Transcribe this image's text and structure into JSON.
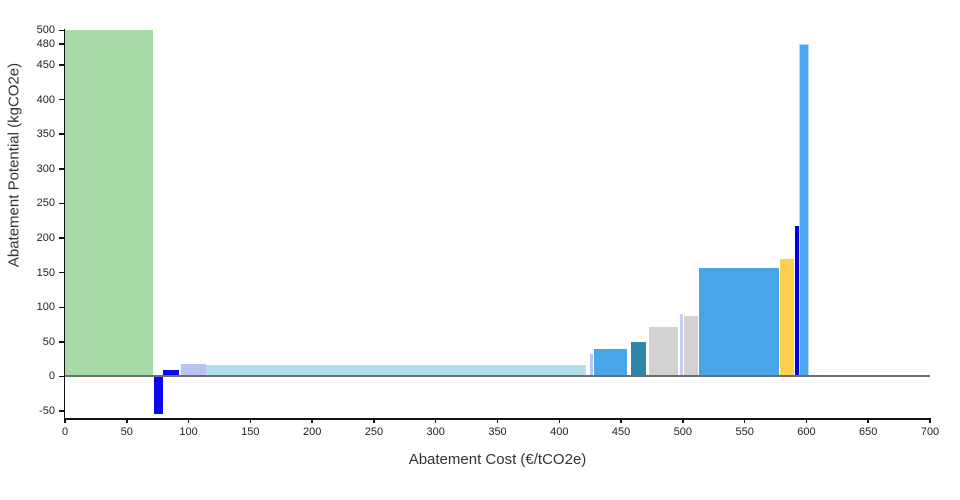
{
  "chart_data": {
    "type": "bar",
    "title": "",
    "xlabel": "Abatement Cost (€/tCO2e)",
    "ylabel": "Abatement Potential (kgCO2e)",
    "xlim": [
      0,
      700
    ],
    "ylim": [
      -60,
      502
    ],
    "grid": false,
    "legend": "none",
    "x_ticks": [
      0,
      50,
      100,
      150,
      200,
      250,
      300,
      350,
      400,
      450,
      500,
      550,
      600,
      650,
      700
    ],
    "y_ticks": [
      -50,
      0,
      50,
      100,
      150,
      200,
      250,
      300,
      350,
      400,
      450,
      480,
      500
    ],
    "zero_line": {
      "y": 0,
      "color": "#6e6e6e"
    },
    "axis_color": "#111111",
    "bars": [
      {
        "x0": 0,
        "x1": 71,
        "value": 500,
        "color": "#a8dba8"
      },
      {
        "x0": 72,
        "x1": 79,
        "value": -54,
        "color": "#0a0af0"
      },
      {
        "x0": 79,
        "x1": 92,
        "value": 10,
        "color": "#0a0af0"
      },
      {
        "x0": 94,
        "x1": 114,
        "value": 18,
        "color": "#b7c3f3"
      },
      {
        "x0": 114,
        "x1": 422,
        "value": 17,
        "color": "#b3dfec"
      },
      {
        "x0": 425,
        "x1": 427,
        "value": 33,
        "color": "#b7c3f3"
      },
      {
        "x0": 428,
        "x1": 455,
        "value": 40,
        "color": "#47a5e8"
      },
      {
        "x0": 458,
        "x1": 470,
        "value": 50,
        "color": "#3287a8"
      },
      {
        "x0": 473,
        "x1": 496,
        "value": 72,
        "color": "#d2d2d2"
      },
      {
        "x0": 498,
        "x1": 500,
        "value": 90,
        "color": "#c3cdf5"
      },
      {
        "x0": 501,
        "x1": 512,
        "value": 88,
        "color": "#d2d2d2"
      },
      {
        "x0": 513,
        "x1": 578,
        "value": 157,
        "color": "#47a5e8"
      },
      {
        "x0": 579,
        "x1": 590,
        "value": 169,
        "color": "#ffd04e"
      },
      {
        "x0": 591,
        "x1": 594,
        "value": 218,
        "color": "#0202d8"
      },
      {
        "x0": 594,
        "x1": 602,
        "value": 480,
        "color": "#4aa9ec",
        "stroke": "#b4dcf6"
      }
    ]
  }
}
